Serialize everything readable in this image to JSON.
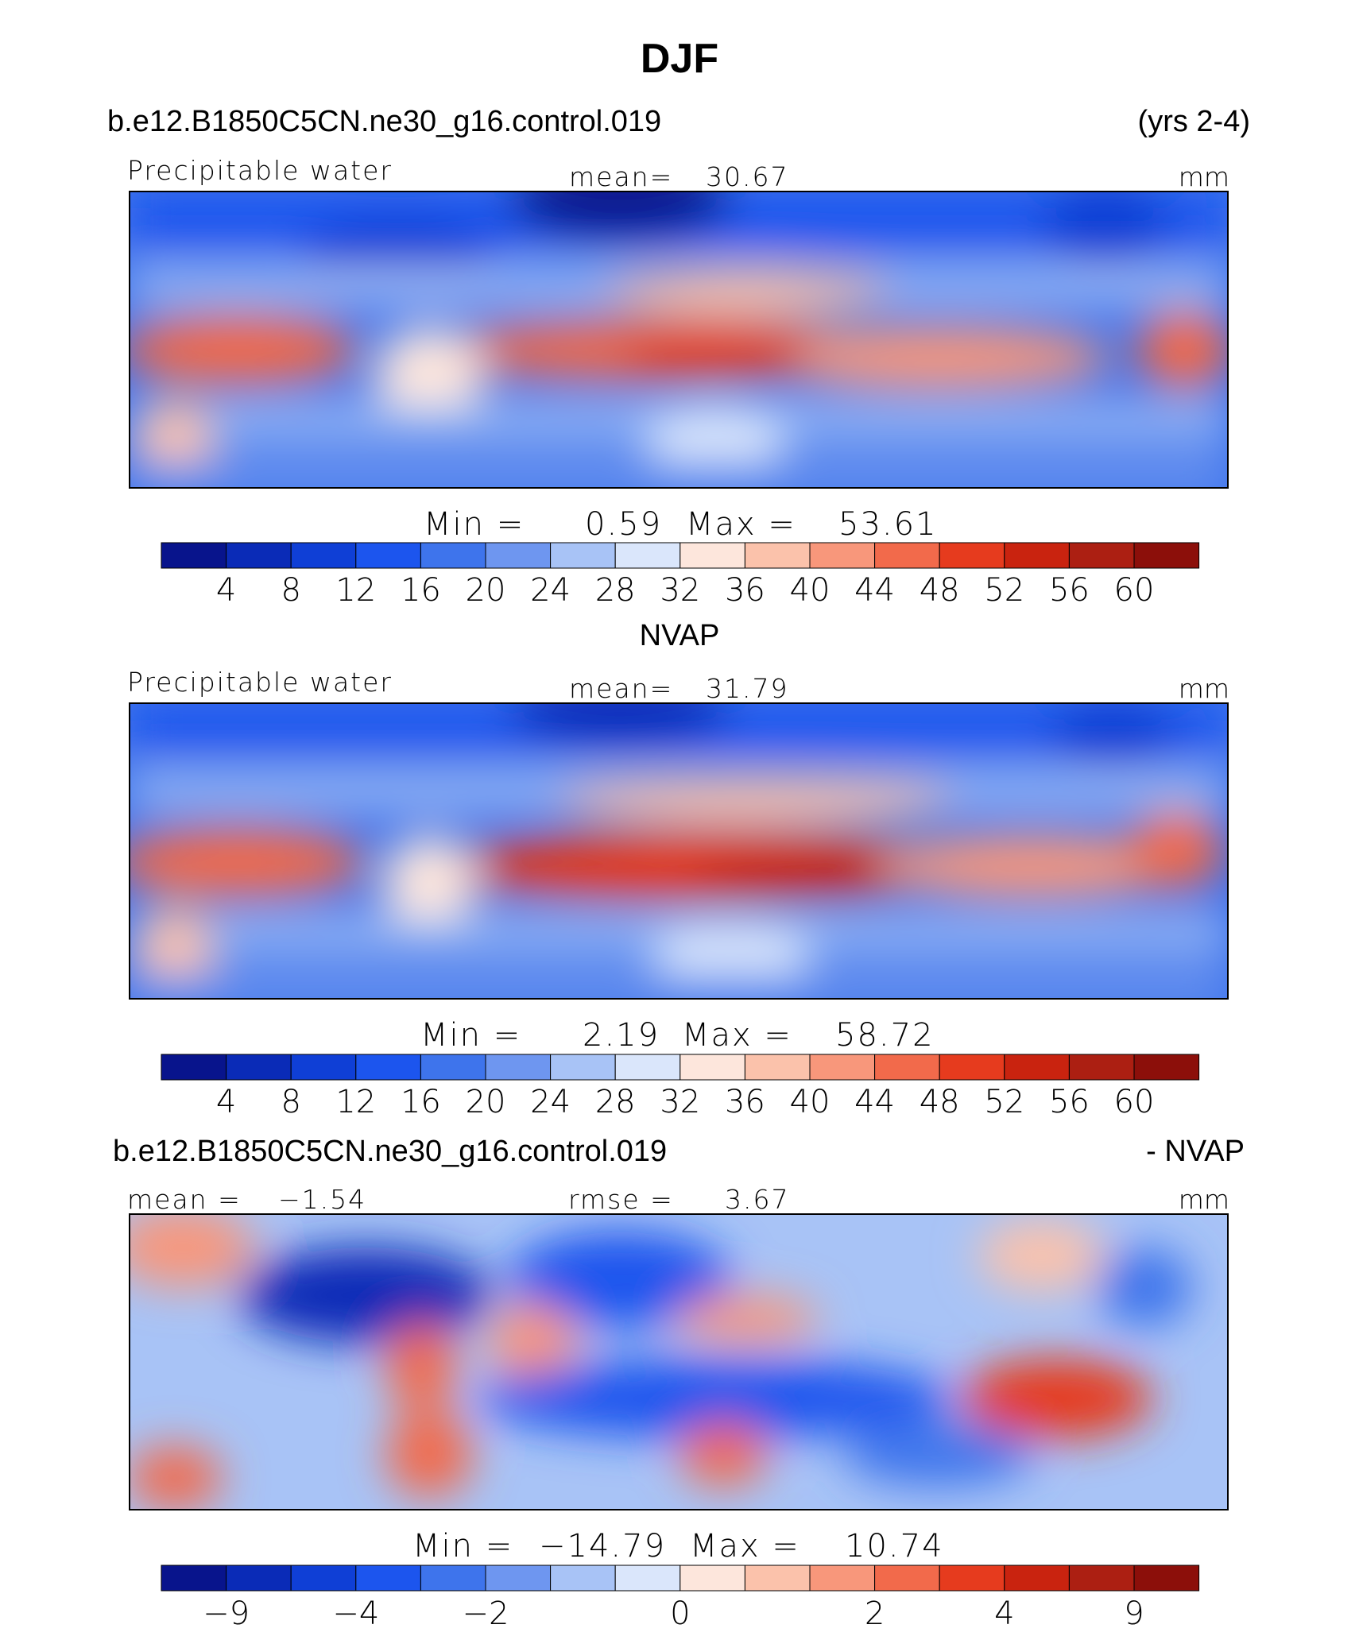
{
  "figure": {
    "title": "DJF",
    "colors": {
      "palette": [
        "#08148c",
        "#0a2bb7",
        "#0f3fd6",
        "#1c55ee",
        "#3e74ec",
        "#6e96f0",
        "#a8c3f6",
        "#dae6fb",
        "#fde6dc",
        "#fbc2ab",
        "#f8977b",
        "#f26a4b",
        "#e63b1e",
        "#c9230f",
        "#ac1f12",
        "#8c0f0a"
      ],
      "anom_palette": [
        "#08148c",
        "#0a2bb7",
        "#0f3fd6",
        "#1c55ee",
        "#3e74ec",
        "#6e96f0",
        "#a8c3f6",
        "#dae6fb",
        "#fde6dc",
        "#fbc2ab",
        "#f8977b",
        "#f26a4b",
        "#e63b1e",
        "#c9230f",
        "#ac1f12",
        "#8c0f0a"
      ]
    }
  },
  "chart_data": [
    {
      "type": "heatmap",
      "header_left": "b.e12.B1850C5CN.ne30_g16.control.019",
      "header_right": "(yrs 2-4)",
      "variable": "Precipitable water",
      "units": "mm",
      "stat_label": "mean=",
      "stat_value": "30.67",
      "min_label": "Min =",
      "min_value": "0.59",
      "max_label": "Max =",
      "max_value": "53.61",
      "levels": [
        4,
        8,
        12,
        16,
        20,
        24,
        28,
        32,
        36,
        40,
        44,
        48,
        52,
        56,
        60
      ],
      "tick_labels": [
        "4",
        "8",
        "12",
        "16",
        "20",
        "24",
        "28",
        "32",
        "36",
        "40",
        "44",
        "48",
        "52",
        "56",
        "60"
      ],
      "mean": 30.67,
      "min": 0.59,
      "max": 53.61
    },
    {
      "type": "heatmap",
      "title": "NVAP",
      "variable": "Precipitable water",
      "units": "mm",
      "stat_label": "mean=",
      "stat_value": "31.79",
      "min_label": "Min =",
      "min_value": "2.19",
      "max_label": "Max =",
      "max_value": "58.72",
      "levels": [
        4,
        8,
        12,
        16,
        20,
        24,
        28,
        32,
        36,
        40,
        44,
        48,
        52,
        56,
        60
      ],
      "tick_labels": [
        "4",
        "8",
        "12",
        "16",
        "20",
        "24",
        "28",
        "32",
        "36",
        "40",
        "44",
        "48",
        "52",
        "56",
        "60"
      ],
      "mean": 31.79,
      "min": 2.19,
      "max": 58.72
    },
    {
      "type": "heatmap",
      "header_left": "b.e12.B1850C5CN.ne30_g16.control.019",
      "header_right": "- NVAP",
      "mean_label": "mean =",
      "mean_value": "−1.54",
      "rmse_label": "rmse =",
      "rmse_value": "3.67",
      "units": "mm",
      "min_label": "Min =",
      "min_value": "−14.79",
      "max_label": "Max =",
      "max_value": "10.74",
      "levels": [
        -9,
        -6,
        -4,
        -3,
        -2,
        -1,
        -0.5,
        0,
        0.5,
        1,
        2,
        3,
        4,
        6,
        9
      ],
      "tick_labels": [
        "−9",
        "",
        "−4",
        "",
        "−2",
        "",
        "",
        "0",
        "",
        "",
        "2",
        "",
        "4",
        "",
        "9"
      ],
      "mean": -1.54,
      "rmse": 3.67,
      "min": -14.79,
      "max": 10.74
    }
  ]
}
